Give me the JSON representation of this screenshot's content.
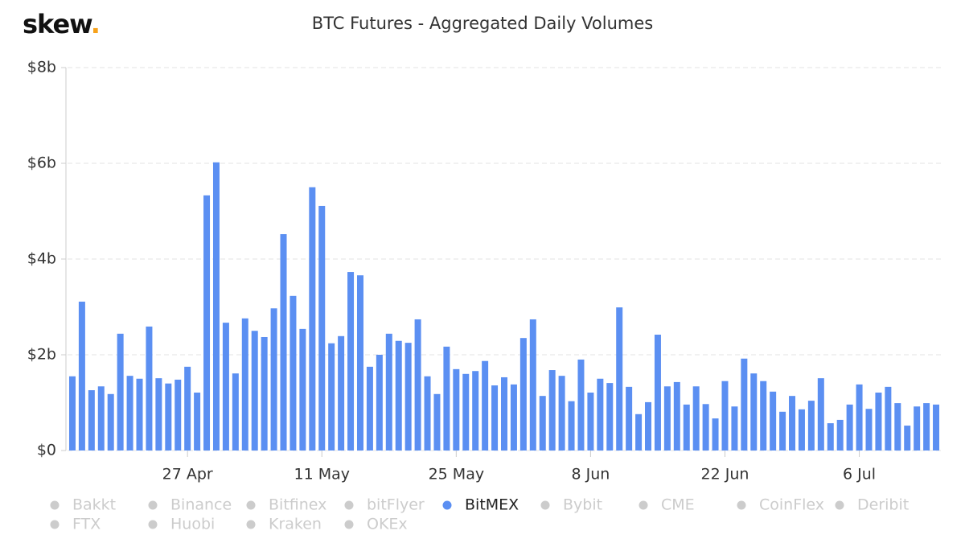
{
  "logo": {
    "text": "skew",
    "dot": "."
  },
  "chart_data": {
    "type": "bar",
    "title": "BTC Futures - Aggregated Daily Volumes",
    "categories": [
      null,
      null,
      null,
      null,
      null,
      null,
      null,
      null,
      null,
      null,
      null,
      null,
      "27 Apr",
      null,
      null,
      null,
      null,
      null,
      null,
      null,
      null,
      null,
      null,
      null,
      null,
      null,
      "11 May",
      null,
      null,
      null,
      null,
      null,
      null,
      null,
      null,
      null,
      null,
      null,
      null,
      null,
      "25 May",
      null,
      null,
      null,
      null,
      null,
      null,
      null,
      null,
      null,
      null,
      null,
      null,
      null,
      "8 Jun",
      null,
      null,
      null,
      null,
      null,
      null,
      null,
      null,
      null,
      null,
      null,
      null,
      null,
      "22 Jun",
      null,
      null,
      null,
      null,
      null,
      null,
      null,
      null,
      null,
      null,
      null,
      null,
      null,
      "6 Jul",
      null,
      null,
      null,
      null,
      null,
      null,
      null,
      null
    ],
    "series": [
      {
        "name": "Bakkt",
        "visible": false
      },
      {
        "name": "Binance",
        "visible": false
      },
      {
        "name": "Bitfinex",
        "visible": false
      },
      {
        "name": "bitFlyer",
        "visible": false
      },
      {
        "name": "BitMEX",
        "visible": true,
        "color": "#5b8ff2",
        "values": [
          1.55,
          3.11,
          1.26,
          1.34,
          1.18,
          2.44,
          1.56,
          1.5,
          2.59,
          1.51,
          1.4,
          1.48,
          1.75,
          1.21,
          5.33,
          6.02,
          2.67,
          1.61,
          2.76,
          2.5,
          2.37,
          2.97,
          4.52,
          3.23,
          2.54,
          5.5,
          5.11,
          2.24,
          2.39,
          3.73,
          3.66,
          1.75,
          2.0,
          2.44,
          2.29,
          2.25,
          2.74,
          1.55,
          1.18,
          2.17,
          1.7,
          1.6,
          1.66,
          1.87,
          1.36,
          1.53,
          1.38,
          2.35,
          2.74,
          1.14,
          1.68,
          1.56,
          1.03,
          1.9,
          1.21,
          1.5,
          1.41,
          2.99,
          1.33,
          0.76,
          1.01,
          2.42,
          1.34,
          1.43,
          0.96,
          1.34,
          0.97,
          0.67,
          1.45,
          0.92,
          1.92,
          1.61,
          1.45,
          1.23,
          0.81,
          1.14,
          0.86,
          1.04,
          1.51,
          0.57,
          0.64,
          0.96,
          1.38,
          0.87,
          1.21,
          1.33,
          0.99,
          0.52,
          0.92,
          0.99,
          0.96
        ]
      },
      {
        "name": "Bybit",
        "visible": false
      },
      {
        "name": "CME",
        "visible": false
      },
      {
        "name": "CoinFlex",
        "visible": false
      },
      {
        "name": "Deribit",
        "visible": false
      },
      {
        "name": "FTX",
        "visible": false
      },
      {
        "name": "Huobi",
        "visible": false
      },
      {
        "name": "Kraken",
        "visible": false
      },
      {
        "name": "OKEx",
        "visible": false
      }
    ],
    "ylim": [
      0,
      8
    ],
    "yticks": [
      {
        "value": 0,
        "label": "$0"
      },
      {
        "value": 2,
        "label": "$2b"
      },
      {
        "value": 4,
        "label": "$4b"
      },
      {
        "value": 6,
        "label": "$6b"
      },
      {
        "value": 8,
        "label": "$8b"
      }
    ],
    "grid": true
  }
}
